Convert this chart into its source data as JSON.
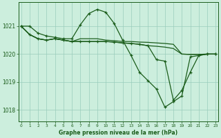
{
  "background_color": "#cceedd",
  "grid_color": "#99ccbb",
  "line_color": "#1a5c1a",
  "title": "Graphe pression niveau de la mer (hPa)",
  "ylim": [
    1017.6,
    1021.85
  ],
  "yticks": [
    1018,
    1019,
    1020,
    1021
  ],
  "hours": [
    0,
    1,
    2,
    3,
    4,
    5,
    6,
    7,
    8,
    9,
    10,
    11,
    12,
    13,
    14,
    15,
    16,
    17,
    18,
    19,
    20,
    21,
    22,
    23
  ],
  "line1": [
    1021.0,
    1021.0,
    1020.75,
    1020.65,
    1020.6,
    1020.55,
    1020.55,
    1021.05,
    1021.45,
    1021.6,
    1021.5,
    1021.1,
    1020.5,
    1019.95,
    1019.35,
    1019.05,
    1018.75,
    1018.1,
    1018.3,
    1018.5,
    1019.9,
    1019.95,
    1020.0,
    1020.0
  ],
  "line2": [
    1021.0,
    1020.7,
    1020.55,
    1020.5,
    1020.55,
    1020.5,
    1020.45,
    1020.55,
    1020.55,
    1020.55,
    1020.5,
    1020.48,
    1020.45,
    1020.45,
    1020.43,
    1020.42,
    1020.4,
    1020.38,
    1020.35,
    1020.0,
    1019.99,
    1019.99,
    1020.0,
    1020.0
  ],
  "line3": [
    1021.0,
    1020.7,
    1020.55,
    1020.5,
    1020.55,
    1020.5,
    1020.45,
    1020.45,
    1020.45,
    1020.45,
    1020.45,
    1020.43,
    1020.4,
    1020.38,
    1020.35,
    1020.3,
    1019.8,
    1019.75,
    1018.35,
    1018.7,
    1019.35,
    1019.95,
    1020.0,
    1020.0
  ],
  "line4": [
    1021.0,
    1020.7,
    1020.55,
    1020.5,
    1020.55,
    1020.5,
    1020.45,
    1020.45,
    1020.45,
    1020.45,
    1020.45,
    1020.43,
    1020.4,
    1020.38,
    1020.35,
    1020.3,
    1020.28,
    1020.25,
    1020.2,
    1020.0,
    1019.99,
    1019.99,
    1020.0,
    1020.0
  ]
}
